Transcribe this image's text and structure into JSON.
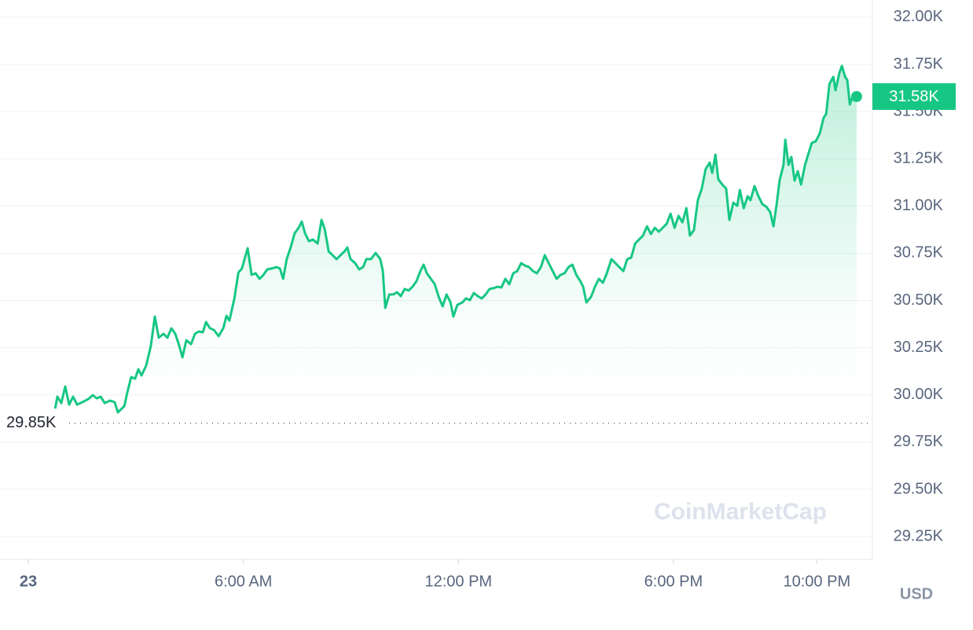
{
  "chart_data": {
    "type": "line",
    "x": [
      0.75,
      0.81,
      0.92,
      1.03,
      1.14,
      1.25,
      1.36,
      1.51,
      1.67,
      1.8,
      1.91,
      2.02,
      2.13,
      2.28,
      2.41,
      2.5,
      2.68,
      2.76,
      2.87,
      2.98,
      3.07,
      3.16,
      3.29,
      3.42,
      3.53,
      3.64,
      3.77,
      3.88,
      3.99,
      4.1,
      4.21,
      4.3,
      4.41,
      4.54,
      4.65,
      4.76,
      4.87,
      4.96,
      5.07,
      5.18,
      5.31,
      5.44,
      5.53,
      5.61,
      5.75,
      5.86,
      5.96,
      6.12,
      6.23,
      6.34,
      6.45,
      6.56,
      6.67,
      6.78,
      6.93,
      7.02,
      7.11,
      7.21,
      7.32,
      7.43,
      7.54,
      7.63,
      7.72,
      7.83,
      7.94,
      8.07,
      8.18,
      8.27,
      8.38,
      8.49,
      8.6,
      8.71,
      8.82,
      8.9,
      8.99,
      9.12,
      9.23,
      9.34,
      9.43,
      9.56,
      9.69,
      9.82,
      9.89,
      9.96,
      10.07,
      10.18,
      10.29,
      10.39,
      10.5,
      10.61,
      10.72,
      10.83,
      10.94,
      11.03,
      11.12,
      11.23,
      11.34,
      11.45,
      11.56,
      11.67,
      11.78,
      11.86,
      11.97,
      12.11,
      12.21,
      12.32,
      12.43,
      12.54,
      12.65,
      12.76,
      12.87,
      12.98,
      13.09,
      13.2,
      13.31,
      13.42,
      13.53,
      13.64,
      13.75,
      13.86,
      13.97,
      14.08,
      14.19,
      14.3,
      14.41,
      14.52,
      14.63,
      14.74,
      14.85,
      14.96,
      15.07,
      15.18,
      15.29,
      15.39,
      15.48,
      15.57,
      15.7,
      15.81,
      15.92,
      16.03,
      16.14,
      16.27,
      16.38,
      16.49,
      16.6,
      16.71,
      16.82,
      16.93,
      17.04,
      17.15,
      17.26,
      17.37,
      17.48,
      17.59,
      17.7,
      17.81,
      17.92,
      18.03,
      18.14,
      18.25,
      18.36,
      18.46,
      18.57,
      18.68,
      18.79,
      18.9,
      19.01,
      19.08,
      19.17,
      19.25,
      19.36,
      19.47,
      19.56,
      19.67,
      19.78,
      19.85,
      19.96,
      20.07,
      20.15,
      20.26,
      20.37,
      20.48,
      20.59,
      20.7,
      20.79,
      20.88,
      20.96,
      21.07,
      21.12,
      21.21,
      21.29,
      21.38,
      21.47,
      21.56,
      21.67,
      21.75,
      21.86,
      21.97,
      22.08,
      22.19,
      22.26,
      22.35,
      22.46,
      22.52,
      22.63,
      22.7,
      22.79,
      22.85,
      22.92,
      23.0,
      23.11
    ],
    "values": [
      29928,
      29991,
      29957,
      30045,
      29949,
      29991,
      29949,
      29962,
      29978,
      29999,
      29982,
      29991,
      29957,
      29970,
      29962,
      29908,
      29941,
      30012,
      30095,
      30086,
      30136,
      30103,
      30157,
      30261,
      30415,
      30303,
      30324,
      30303,
      30353,
      30324,
      30261,
      30199,
      30290,
      30269,
      30324,
      30336,
      30332,
      30386,
      30353,
      30344,
      30311,
      30353,
      30419,
      30394,
      30511,
      30648,
      30669,
      30777,
      30636,
      30644,
      30615,
      30636,
      30665,
      30669,
      30677,
      30669,
      30615,
      30719,
      30781,
      30856,
      30885,
      30918,
      30856,
      30814,
      30823,
      30802,
      30927,
      30877,
      30760,
      30740,
      30719,
      30740,
      30760,
      30781,
      30719,
      30698,
      30665,
      30677,
      30719,
      30719,
      30752,
      30719,
      30656,
      30461,
      30532,
      30532,
      30544,
      30523,
      30561,
      30553,
      30573,
      30602,
      30656,
      30690,
      30644,
      30615,
      30586,
      30519,
      30469,
      30532,
      30490,
      30415,
      30477,
      30490,
      30511,
      30502,
      30540,
      30523,
      30511,
      30532,
      30561,
      30565,
      30573,
      30569,
      30615,
      30586,
      30644,
      30656,
      30698,
      30685,
      30677,
      30656,
      30644,
      30677,
      30740,
      30698,
      30656,
      30615,
      30636,
      30644,
      30677,
      30690,
      30636,
      30606,
      30573,
      30490,
      30519,
      30573,
      30615,
      30594,
      30644,
      30719,
      30698,
      30677,
      30656,
      30719,
      30727,
      30802,
      30823,
      30844,
      30893,
      30852,
      30885,
      30864,
      30885,
      30906,
      30960,
      30885,
      30948,
      30914,
      30989,
      30844,
      30873,
      31031,
      31093,
      31197,
      31230,
      31176,
      31272,
      31143,
      31114,
      31093,
      30927,
      31018,
      31002,
      31085,
      30989,
      31052,
      31031,
      31106,
      31052,
      31010,
      30997,
      30968,
      30893,
      31010,
      31135,
      31218,
      31351,
      31218,
      31260,
      31135,
      31185,
      31114,
      31218,
      31268,
      31334,
      31343,
      31384,
      31468,
      31488,
      31646,
      31684,
      31613,
      31705,
      31742,
      31684,
      31667,
      31538,
      31584,
      31580
    ],
    "color": "#16c784",
    "xlim": [
      -0.79,
      23.55
    ],
    "xticks": [
      {
        "value": 0,
        "label": "23"
      },
      {
        "value": 6,
        "label": "6:00 AM"
      },
      {
        "value": 12,
        "label": "12:00 PM"
      },
      {
        "value": 18,
        "label": "6:00 PM"
      },
      {
        "value": 22,
        "label": "10:00 PM"
      }
    ],
    "ylim": [
      29130,
      32091
    ],
    "yticks": [
      {
        "value": 29250,
        "label": "29.25K"
      },
      {
        "value": 29500,
        "label": "29.50K"
      },
      {
        "value": 29750,
        "label": "29.75K"
      },
      {
        "value": 30000,
        "label": "30.00K"
      },
      {
        "value": 30250,
        "label": "30.25K"
      },
      {
        "value": 30500,
        "label": "30.50K"
      },
      {
        "value": 30750,
        "label": "30.75K"
      },
      {
        "value": 31000,
        "label": "31.00K"
      },
      {
        "value": 31250,
        "label": "31.25K"
      },
      {
        "value": 31500,
        "label": "31.50K"
      },
      {
        "value": 31750,
        "label": "31.75K"
      },
      {
        "value": 32000,
        "label": "32.00K"
      }
    ],
    "grid": true,
    "current_price": {
      "value": 31580,
      "label": "31.58K"
    },
    "reference": {
      "value": 29850,
      "label": "29.85K"
    },
    "unit": "USD",
    "watermark": "CoinMarketCap"
  }
}
